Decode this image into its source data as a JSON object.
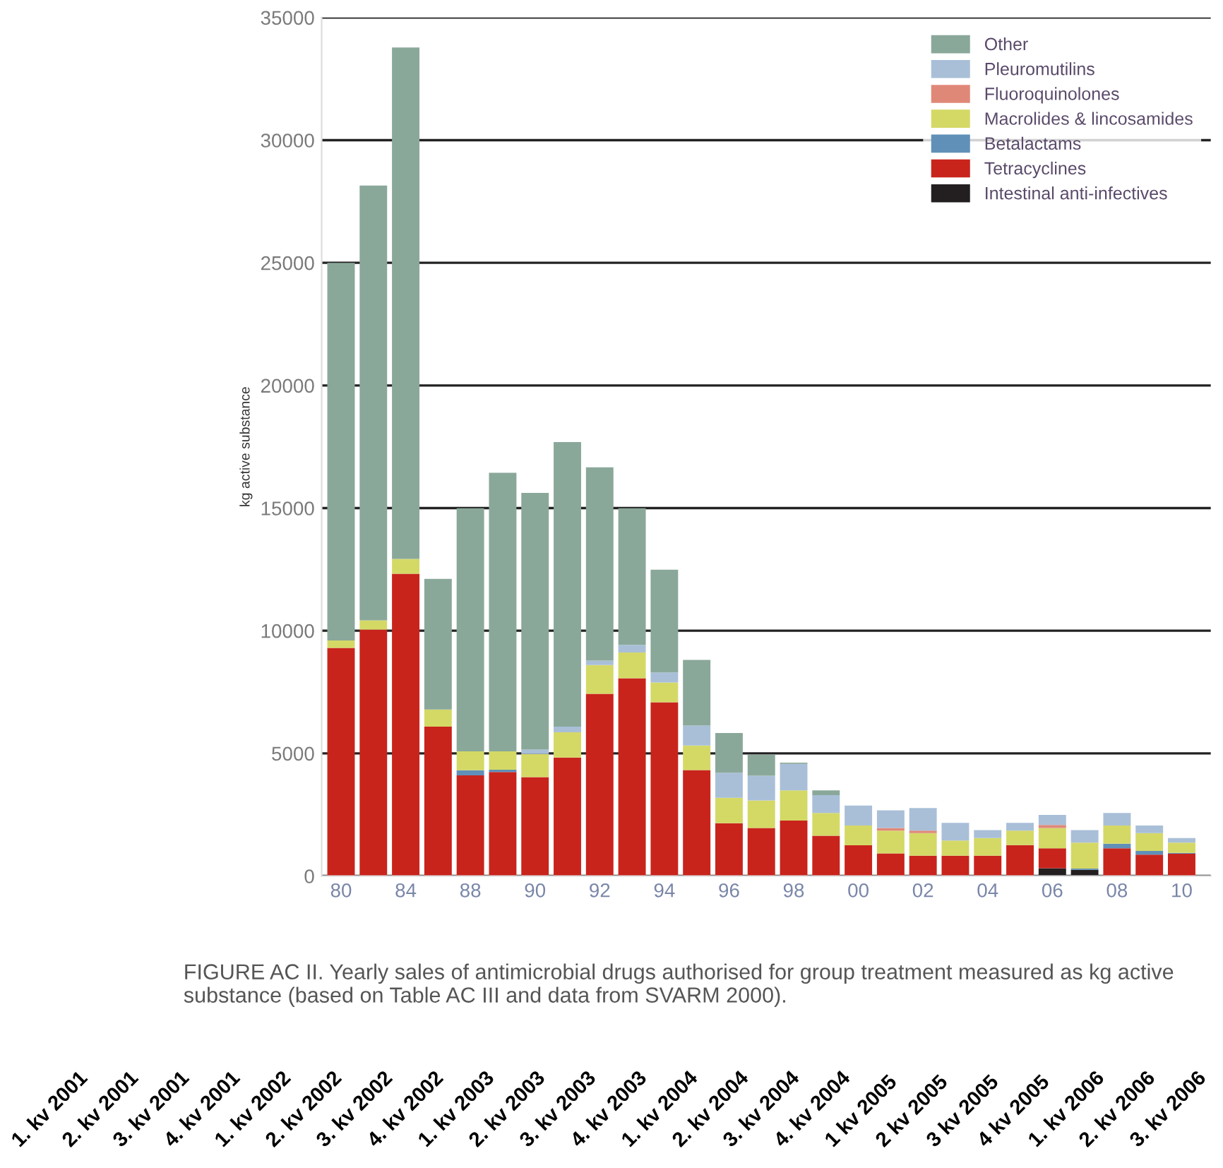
{
  "chart_data": {
    "type": "bar",
    "stacked": true,
    "ylabel": "kg active substance",
    "categories": [
      "80",
      null,
      "84",
      null,
      "88",
      null,
      "90",
      null,
      "92",
      null,
      "94",
      null,
      "96",
      null,
      "98",
      null,
      "00",
      null,
      "02",
      null,
      "04",
      null,
      "06",
      null,
      "08",
      null,
      "10"
    ],
    "series": [
      {
        "name": "Intestinal anti-infectives",
        "color": "#231f20",
        "values": [
          0,
          0,
          0,
          0,
          0,
          0,
          0,
          0,
          0,
          0,
          0,
          0,
          0,
          0,
          0,
          0,
          0,
          0,
          0,
          0,
          0,
          0,
          320,
          250,
          0,
          0,
          0
        ]
      },
      {
        "name": "Tetracyclines",
        "color": "#c8241c",
        "values": [
          9300,
          10050,
          12320,
          6090,
          4100,
          4240,
          4030,
          4830,
          7430,
          8060,
          7080,
          4320,
          2150,
          1960,
          2260,
          1640,
          1250,
          920,
          830,
          830,
          830,
          1260,
          810,
          0,
          1130,
          870,
          910
        ]
      },
      {
        "name": "Betalactams",
        "color": "#6090b8",
        "values": [
          0,
          0,
          0,
          0,
          210,
          90,
          0,
          0,
          0,
          0,
          0,
          0,
          0,
          0,
          0,
          0,
          0,
          0,
          0,
          0,
          0,
          0,
          0,
          50,
          190,
          150,
          30
        ]
      },
      {
        "name": "Macrolides & lincosamides",
        "color": "#d4d966",
        "values": [
          300,
          370,
          610,
          700,
          770,
          750,
          940,
          1030,
          1170,
          1050,
          810,
          1000,
          1040,
          1120,
          1230,
          930,
          810,
          930,
          920,
          620,
          720,
          590,
          830,
          1060,
          740,
          730,
          420
        ]
      },
      {
        "name": "Fluoroquinolones",
        "color": "#e08878",
        "values": [
          0,
          0,
          0,
          0,
          0,
          0,
          0,
          0,
          0,
          0,
          0,
          0,
          0,
          0,
          0,
          0,
          0,
          110,
          100,
          0,
          0,
          0,
          120,
          0,
          0,
          0,
          0
        ]
      },
      {
        "name": "Pleuromutilins",
        "color": "#a9bfd8",
        "values": [
          0,
          0,
          0,
          0,
          0,
          0,
          180,
          230,
          180,
          310,
          410,
          810,
          1020,
          1010,
          1080,
          730,
          810,
          720,
          920,
          720,
          320,
          320,
          410,
          510,
          510,
          310,
          190
        ]
      },
      {
        "name": "Other",
        "color": "#8aa89a",
        "values": [
          15400,
          17730,
          20850,
          5320,
          9910,
          11360,
          10470,
          11600,
          7880,
          5570,
          4190,
          2680,
          1620,
          850,
          50,
          190,
          0,
          0,
          0,
          0,
          0,
          0,
          0,
          0,
          0,
          0,
          0
        ]
      }
    ],
    "ylim": [
      0,
      35000
    ],
    "yticks": [
      0,
      5000,
      10000,
      15000,
      20000,
      25000,
      30000,
      35000
    ],
    "grid": "y",
    "legend": "top right",
    "annotations": [
      "FIGURE AC II. Yearly sales of antimicrobial drugs authorised for group treatment measured as kg active substance (based on Table AC III and data from SVARM 2000).",
      "1. kv 2001",
      "2. kv 2001",
      "3. kv 2001",
      "4. kv 2001",
      "1. kv 2002",
      "2. kv 2002",
      "3. kv 2002",
      "4. kv 2002",
      "1. kv 2003",
      "2. kv 2003",
      "3. kv 2003",
      "4. kv 2003",
      "1. kv 2004",
      "2. kv 2004",
      "3. kv 2004",
      "4. kv 2004",
      "1 kv 2005",
      "2 kv 2005",
      "3 kv 2005",
      "4 kv 2005",
      "1. kv 2006",
      "2. kv 2006",
      "3. kv 2006"
    ]
  }
}
